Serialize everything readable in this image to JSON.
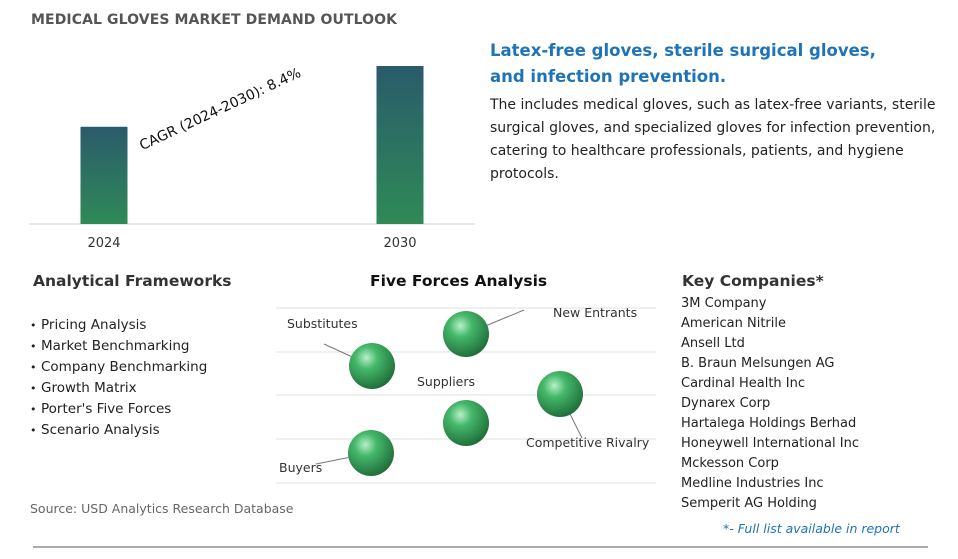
{
  "title": "MEDICAL GLOVES MARKET DEMAND OUTLOOK",
  "chart_data": {
    "type": "bar",
    "categories": [
      "2024",
      "2030"
    ],
    "values": [
      1,
      1.625
    ],
    "annotation": "CAGR (2024-2030):   8.4%",
    "colors": {
      "bar_top": "#2a5b6b",
      "bar_bottom": "#2f8a57",
      "axis": "#d0d0d0"
    }
  },
  "description": {
    "heading": "Latex-free gloves, sterile surgical gloves, and infection prevention.",
    "body": "The includes medical gloves, such as latex-free variants, sterile surgical gloves, and specialized gloves for infection prevention, catering to healthcare professionals, patients, and hygiene protocols."
  },
  "frameworks": {
    "title": "Analytical Frameworks",
    "items": [
      "Pricing Analysis",
      "Market Benchmarking",
      "Company Benchmarking",
      "Growth Matrix",
      "Porter's Five Forces",
      "Scenario Analysis"
    ]
  },
  "five_forces": {
    "title": "Five Forces Analysis",
    "labels": {
      "substitutes": "Substitutes",
      "new_entrants": "New Entrants",
      "suppliers": "Suppliers",
      "competitive_rivalry": "Competitive Rivalry",
      "buyers": "Buyers"
    },
    "sphere_color": "#3daa5e"
  },
  "companies": {
    "title": "Key Companies*",
    "items": [
      "3M Company",
      "American Nitrile",
      "Ansell Ltd",
      "B. Braun Melsungen AG",
      "Cardinal Health Inc",
      "Dynarex Corp",
      "Hartalega Holdings Berhad",
      "Honeywell International Inc",
      "Mckesson Corp",
      "Medline Industries Inc",
      "Semperit AG Holding"
    ],
    "note": "*- Full list available in report"
  },
  "source": "Source: USD Analytics Research Database",
  "accent_color": "#1f73b7"
}
